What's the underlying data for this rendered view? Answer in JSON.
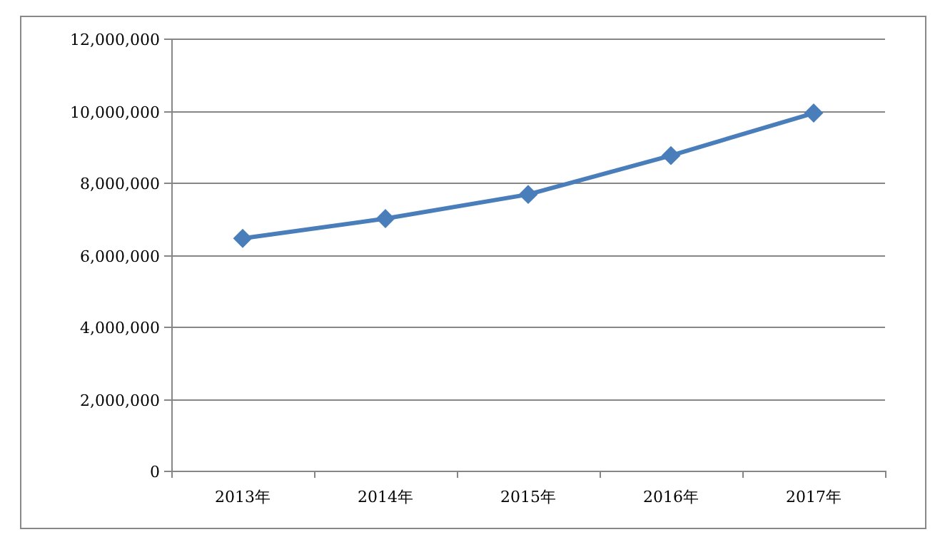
{
  "chart_data": {
    "type": "line",
    "categories": [
      "2013年",
      "2014年",
      "2015年",
      "2016年",
      "2017年"
    ],
    "values": [
      6450000,
      7000000,
      7670000,
      8750000,
      9930000
    ],
    "color": "#4a7ebb",
    "marker": "diamond",
    "grid": "y",
    "ylim": [
      0,
      12000000
    ],
    "yticks": [
      {
        "value": 0,
        "label": "0"
      },
      {
        "value": 2000000,
        "label": "2,000,000"
      },
      {
        "value": 4000000,
        "label": "4,000,000"
      },
      {
        "value": 6000000,
        "label": "6,000,000"
      },
      {
        "value": 8000000,
        "label": "8,000,000"
      },
      {
        "value": 10000000,
        "label": "10,000,000"
      },
      {
        "value": 12000000,
        "label": "12,000,000"
      }
    ]
  }
}
